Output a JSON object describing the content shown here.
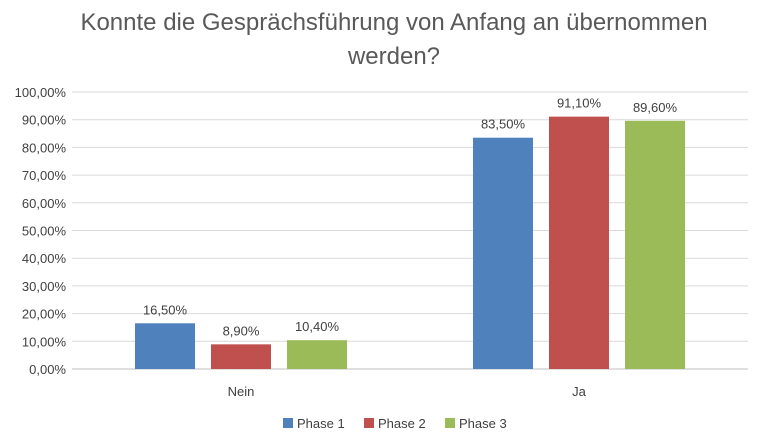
{
  "chart_data": {
    "type": "bar",
    "title_lines": [
      "Konnte die Gesprächsführung von Anfang an übernommen",
      "werden?"
    ],
    "categories": [
      "Nein",
      "Ja"
    ],
    "series": [
      {
        "name": "Phase 1",
        "color": "#4f81bd",
        "values": [
          16.5,
          83.5
        ],
        "labels": [
          "16,50%",
          "83,50%"
        ]
      },
      {
        "name": "Phase 2",
        "color": "#c0504d",
        "values": [
          8.9,
          91.1
        ],
        "labels": [
          "8,90%",
          "91,10%"
        ]
      },
      {
        "name": "Phase 3",
        "color": "#9bbb59",
        "values": [
          10.4,
          89.6
        ],
        "labels": [
          "10,40%",
          "89,60%"
        ]
      }
    ],
    "ylim": [
      0,
      100
    ],
    "yticks": [
      {
        "value": 0,
        "label": "0,00%"
      },
      {
        "value": 10,
        "label": "10,00%"
      },
      {
        "value": 20,
        "label": "20,00%"
      },
      {
        "value": 30,
        "label": "30,00%"
      },
      {
        "value": 40,
        "label": "40,00%"
      },
      {
        "value": 50,
        "label": "50,00%"
      },
      {
        "value": 60,
        "label": "60,00%"
      },
      {
        "value": 70,
        "label": "70,00%"
      },
      {
        "value": 80,
        "label": "80,00%"
      },
      {
        "value": 90,
        "label": "90,00%"
      },
      {
        "value": 100,
        "label": "100,00%"
      }
    ],
    "grid": true,
    "legend_position": "bottom"
  }
}
